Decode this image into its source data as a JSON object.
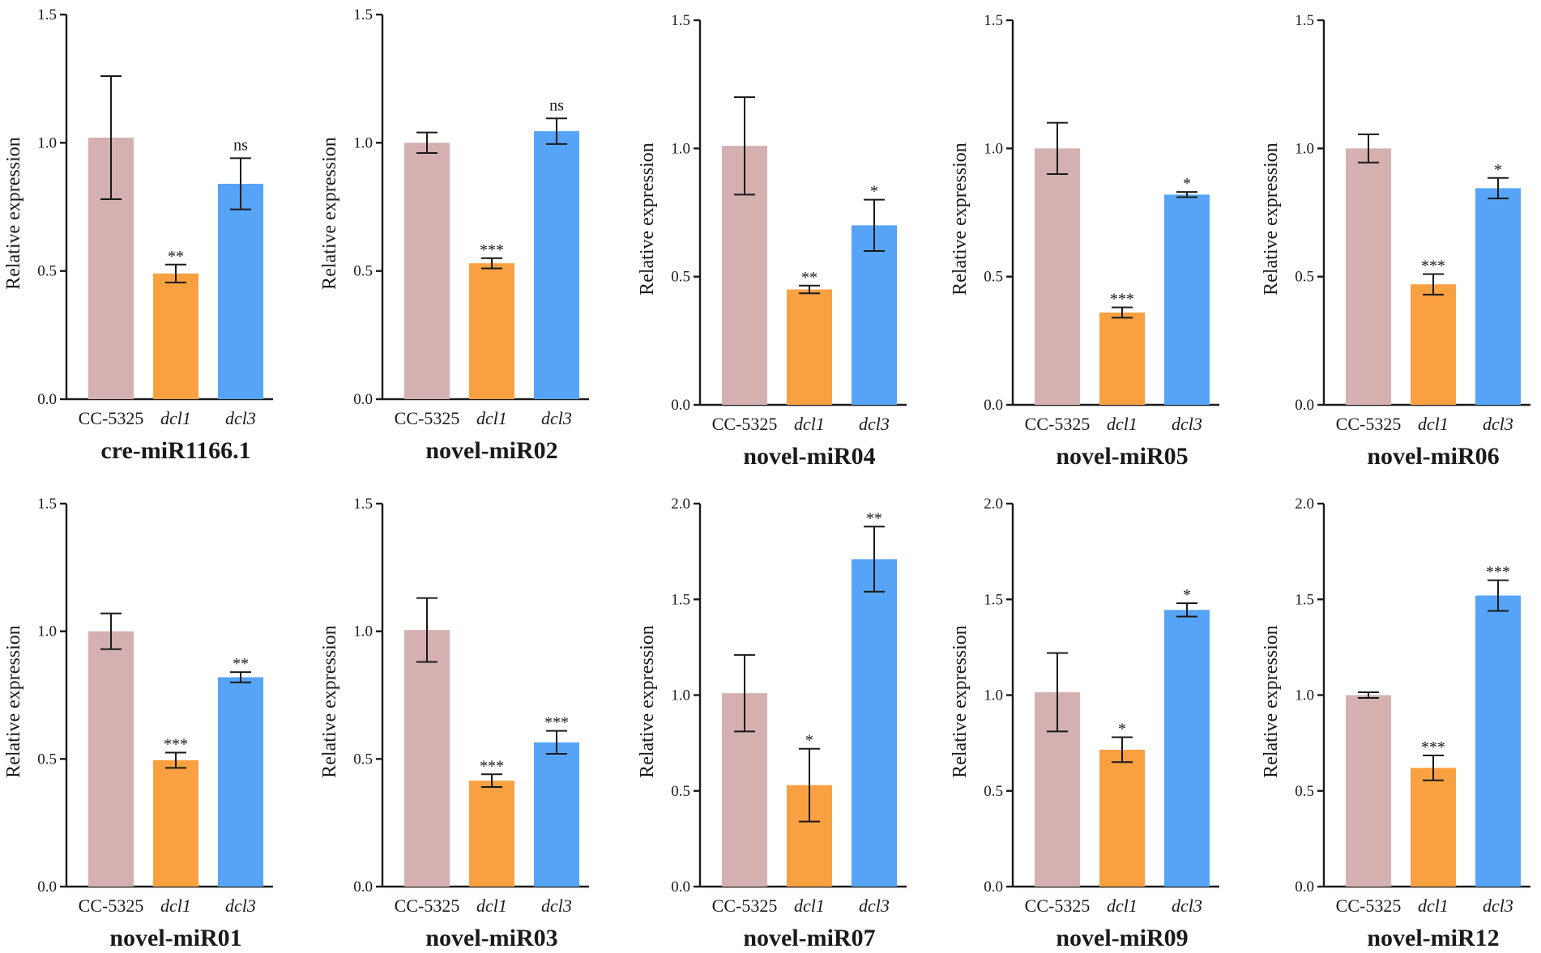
{
  "colors": {
    "CC-5325": "#d4b0b0",
    "dcl1": "#f9a040",
    "dcl3": "#55a4f7",
    "axis": "#1a1a1a"
  },
  "chart_data": [
    {
      "type": "bar",
      "title": "cre-miR1166.1",
      "ylabel": "Relative expression",
      "xlabel": "",
      "categories": [
        "CC-5325",
        "dcl1",
        "dcl3"
      ],
      "values": [
        1.02,
        0.49,
        0.84
      ],
      "errors": [
        0.24,
        0.035,
        0.1
      ],
      "significance": [
        "",
        "**",
        "ns"
      ],
      "ylim": [
        0,
        1.5
      ],
      "yticks": [
        "0.0",
        "0.5",
        "1.0",
        "1.5"
      ]
    },
    {
      "type": "bar",
      "title": "novel-miR02",
      "ylabel": "Relative expression",
      "xlabel": "",
      "categories": [
        "CC-5325",
        "dcl1",
        "dcl3"
      ],
      "values": [
        1.0,
        0.53,
        1.045
      ],
      "errors": [
        0.04,
        0.02,
        0.05
      ],
      "significance": [
        "",
        "***",
        "ns"
      ],
      "ylim": [
        0,
        1.5
      ],
      "yticks": [
        "0.0",
        "0.5",
        "1.0",
        "1.5"
      ]
    },
    {
      "type": "bar",
      "title": "novel-miR04",
      "ylabel": "Relative expression",
      "xlabel": "",
      "categories": [
        "CC-5325",
        "dcl1",
        "dcl3"
      ],
      "values": [
        1.01,
        0.45,
        0.7
      ],
      "errors": [
        0.19,
        0.015,
        0.1
      ],
      "significance": [
        "",
        "**",
        "*"
      ],
      "ylim": [
        0,
        1.5
      ],
      "yticks": [
        "0.0",
        "0.5",
        "1.0",
        "1.5"
      ]
    },
    {
      "type": "bar",
      "title": "novel-miR05",
      "ylabel": "Relative expression",
      "xlabel": "",
      "categories": [
        "CC-5325",
        "dcl1",
        "dcl3"
      ],
      "values": [
        1.0,
        0.36,
        0.82
      ],
      "errors": [
        0.1,
        0.02,
        0.01
      ],
      "significance": [
        "",
        "***",
        "*"
      ],
      "ylim": [
        0,
        1.5
      ],
      "yticks": [
        "0.0",
        "0.5",
        "1.0",
        "1.5"
      ]
    },
    {
      "type": "bar",
      "title": "novel-miR06",
      "ylabel": "Relative expression",
      "xlabel": "",
      "categories": [
        "CC-5325",
        "dcl1",
        "dcl3"
      ],
      "values": [
        1.0,
        0.47,
        0.845
      ],
      "errors": [
        0.055,
        0.04,
        0.04
      ],
      "significance": [
        "",
        "***",
        "*"
      ],
      "ylim": [
        0,
        1.5
      ],
      "yticks": [
        "0.0",
        "0.5",
        "1.0",
        "1.5"
      ]
    },
    {
      "type": "bar",
      "title": "novel-miR01",
      "ylabel": "Relative expression",
      "xlabel": "",
      "categories": [
        "CC-5325",
        "dcl1",
        "dcl3"
      ],
      "values": [
        1.0,
        0.495,
        0.82
      ],
      "errors": [
        0.07,
        0.03,
        0.02
      ],
      "significance": [
        "",
        "***",
        "**"
      ],
      "ylim": [
        0,
        1.5
      ],
      "yticks": [
        "0.0",
        "0.5",
        "1.0",
        "1.5"
      ]
    },
    {
      "type": "bar",
      "title": "novel-miR03",
      "ylabel": "Relative expression",
      "xlabel": "",
      "categories": [
        "CC-5325",
        "dcl1",
        "dcl3"
      ],
      "values": [
        1.005,
        0.415,
        0.565
      ],
      "errors": [
        0.125,
        0.025,
        0.045
      ],
      "significance": [
        "",
        "***",
        "***"
      ],
      "ylim": [
        0,
        1.5
      ],
      "yticks": [
        "0.0",
        "0.5",
        "1.0",
        "1.5"
      ]
    },
    {
      "type": "bar",
      "title": "novel-miR07",
      "ylabel": "Relative expression",
      "xlabel": "",
      "categories": [
        "CC-5325",
        "dcl1",
        "dcl3"
      ],
      "values": [
        1.01,
        0.53,
        1.71
      ],
      "errors": [
        0.2,
        0.19,
        0.17
      ],
      "significance": [
        "",
        "*",
        "**"
      ],
      "ylim": [
        0,
        2.0
      ],
      "yticks": [
        "0.0",
        "0.5",
        "1.0",
        "1.5",
        "2.0"
      ]
    },
    {
      "type": "bar",
      "title": "novel-miR09",
      "ylabel": "Relative expression",
      "xlabel": "",
      "categories": [
        "CC-5325",
        "dcl1",
        "dcl3"
      ],
      "values": [
        1.015,
        0.715,
        1.445
      ],
      "errors": [
        0.205,
        0.065,
        0.035
      ],
      "significance": [
        "",
        "*",
        "*"
      ],
      "ylim": [
        0,
        2.0
      ],
      "yticks": [
        "0.0",
        "0.5",
        "1.0",
        "1.5",
        "2.0"
      ]
    },
    {
      "type": "bar",
      "title": "novel-miR12",
      "ylabel": "Relative expression",
      "xlabel": "",
      "categories": [
        "CC-5325",
        "dcl1",
        "dcl3"
      ],
      "values": [
        1.0,
        0.62,
        1.52
      ],
      "errors": [
        0.015,
        0.065,
        0.08
      ],
      "significance": [
        "",
        "***",
        "***"
      ],
      "ylim": [
        0,
        2.0
      ],
      "yticks": [
        "0.0",
        "0.5",
        "1.0",
        "1.5",
        "2.0"
      ]
    }
  ]
}
